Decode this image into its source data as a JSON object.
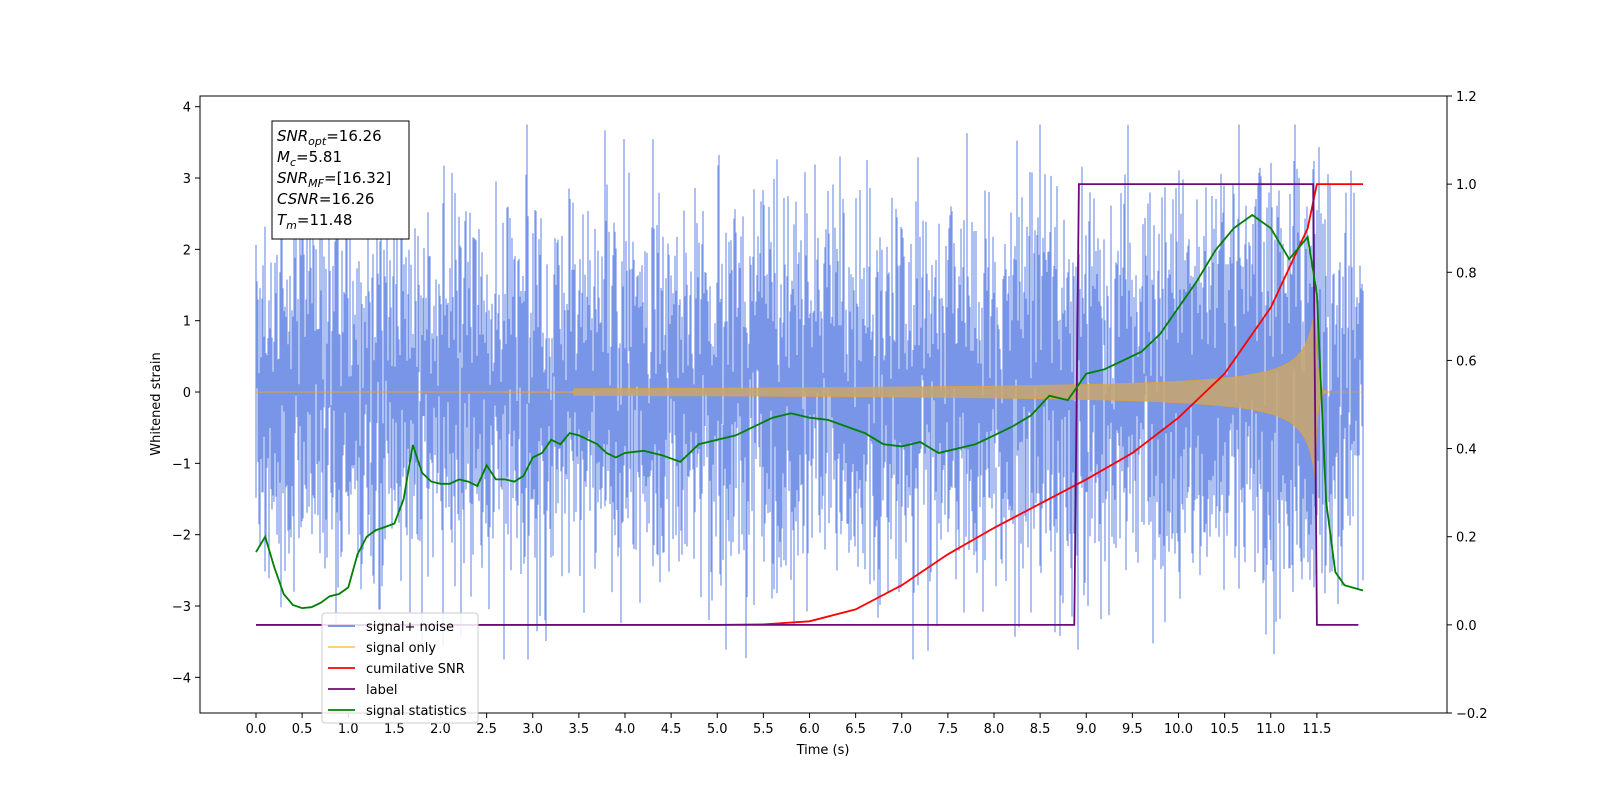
{
  "chart_data": {
    "type": "line",
    "xlabel": "Time (s)",
    "ylabel": "Whitened strain",
    "xlim": [
      -0.6,
      12.5
    ],
    "ylim": [
      -4.5,
      4.15
    ],
    "y2lim": [
      -0.2,
      1.2
    ],
    "x_ticks": [
      "0.0",
      "0.5",
      "1.0",
      "1.5",
      "2.0",
      "2.5",
      "3.0",
      "3.5",
      "4.0",
      "4.5",
      "5.0",
      "5.5",
      "6.0",
      "6.5",
      "7.0",
      "7.5",
      "8.0",
      "8.5",
      "9.0",
      "9.5",
      "10.0",
      "10.5",
      "11.0",
      "11.5"
    ],
    "y_ticks": [
      "4",
      "3",
      "2",
      "1",
      "0",
      "−1",
      "−2",
      "−3",
      "−4"
    ],
    "y2_ticks": [
      "1.2",
      "1.0",
      "0.8",
      "0.6",
      "0.4",
      "0.2",
      "0.0",
      "−0.2"
    ],
    "grid": false,
    "legend_position": "lower-left",
    "info_box": [
      {
        "sym": "SNR",
        "sub": "opt",
        "val": "=16.26"
      },
      {
        "sym": "M",
        "sub": "c",
        "val": "=5.81"
      },
      {
        "sym": "SNR",
        "sub": "MF",
        "val": "=[16.32]"
      },
      {
        "sym": "CSNR",
        "sub": "",
        "val": "=16.26"
      },
      {
        "sym": "T",
        "sub": "m",
        "val": "=11.48"
      }
    ],
    "series": [
      {
        "name": "signal+ noise",
        "color": "#6a89e6",
        "axis": "left",
        "kind": "noise",
        "t_start": 0.0,
        "t_end": 12.0,
        "std": 1.0
      },
      {
        "name": "signal only",
        "color": "#ffa500",
        "axis": "left",
        "kind": "chirp",
        "t_start": 0.0,
        "t_end": 12.0,
        "t_merger": 11.48,
        "peak": 1.2
      },
      {
        "name": "cumilative SNR",
        "color": "#ff0000",
        "axis": "right",
        "x": [
          0.0,
          5.0,
          5.5,
          6.0,
          6.5,
          7.0,
          7.5,
          8.0,
          8.5,
          9.0,
          9.5,
          10.0,
          10.5,
          11.0,
          11.4,
          11.5,
          12.0
        ],
        "values": [
          0.0,
          0.0,
          0.001,
          0.008,
          0.035,
          0.09,
          0.16,
          0.22,
          0.275,
          0.33,
          0.39,
          0.47,
          0.57,
          0.72,
          0.9,
          1.0,
          1.0
        ]
      },
      {
        "name": "label",
        "color": "#6c0a78",
        "axis": "right",
        "x": [
          0.0,
          8.87,
          8.92,
          11.46,
          11.5,
          11.95
        ],
        "values": [
          0.0,
          0.0,
          1.0,
          1.0,
          0.0,
          0.0
        ]
      },
      {
        "name": "signal statistics",
        "color": "#008000",
        "axis": "right",
        "x": [
          0.0,
          0.1,
          0.2,
          0.3,
          0.4,
          0.5,
          0.6,
          0.7,
          0.8,
          0.9,
          1.0,
          1.1,
          1.2,
          1.3,
          1.4,
          1.5,
          1.6,
          1.7,
          1.8,
          1.9,
          2.0,
          2.1,
          2.2,
          2.3,
          2.4,
          2.5,
          2.6,
          2.7,
          2.8,
          2.9,
          3.0,
          3.1,
          3.2,
          3.3,
          3.4,
          3.5,
          3.6,
          3.7,
          3.8,
          3.9,
          4.0,
          4.2,
          4.4,
          4.6,
          4.8,
          5.0,
          5.2,
          5.4,
          5.6,
          5.8,
          6.0,
          6.2,
          6.4,
          6.6,
          6.8,
          7.0,
          7.2,
          7.4,
          7.6,
          7.8,
          8.0,
          8.2,
          8.4,
          8.6,
          8.8,
          9.0,
          9.2,
          9.4,
          9.6,
          9.8,
          10.0,
          10.2,
          10.4,
          10.6,
          10.8,
          11.0,
          11.2,
          11.4,
          11.5,
          11.6,
          11.7,
          11.8,
          12.0
        ],
        "values": [
          0.165,
          0.2,
          0.13,
          0.07,
          0.045,
          0.038,
          0.04,
          0.05,
          0.065,
          0.07,
          0.085,
          0.16,
          0.2,
          0.215,
          0.222,
          0.23,
          0.285,
          0.408,
          0.345,
          0.325,
          0.32,
          0.32,
          0.33,
          0.325,
          0.315,
          0.362,
          0.33,
          0.33,
          0.325,
          0.338,
          0.38,
          0.39,
          0.42,
          0.41,
          0.435,
          0.43,
          0.42,
          0.41,
          0.39,
          0.38,
          0.39,
          0.395,
          0.385,
          0.37,
          0.41,
          0.42,
          0.43,
          0.45,
          0.47,
          0.48,
          0.47,
          0.465,
          0.45,
          0.435,
          0.41,
          0.405,
          0.415,
          0.39,
          0.4,
          0.41,
          0.43,
          0.45,
          0.475,
          0.52,
          0.51,
          0.57,
          0.58,
          0.6,
          0.62,
          0.66,
          0.72,
          0.78,
          0.85,
          0.9,
          0.93,
          0.9,
          0.83,
          0.88,
          0.75,
          0.28,
          0.12,
          0.09,
          0.078
        ]
      }
    ]
  }
}
